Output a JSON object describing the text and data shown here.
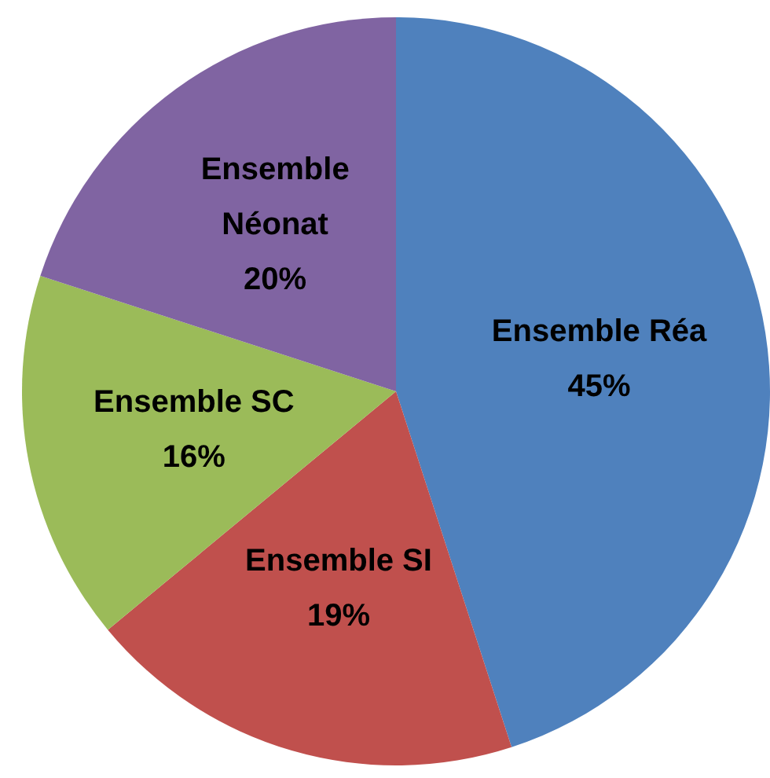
{
  "chart_data": {
    "type": "pie",
    "categories": [
      "Ensemble Réa",
      "Ensemble SI",
      "Ensemble SC",
      "Ensemble Néonat"
    ],
    "values": [
      45,
      19,
      16,
      20
    ],
    "colors": [
      "#4f81bd",
      "#c0504d",
      "#9bbb59",
      "#8064a2"
    ],
    "value_labels": [
      "45%",
      "19%",
      "16%",
      "20%"
    ]
  }
}
